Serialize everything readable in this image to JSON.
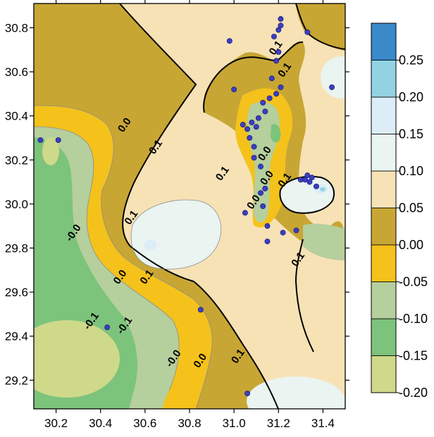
{
  "chart_data": {
    "type": "contour",
    "title": "",
    "xlabel": "",
    "ylabel": "",
    "xlim": [
      30.1,
      31.5
    ],
    "ylim": [
      29.07,
      30.91
    ],
    "x_ticks": [
      30.2,
      30.4,
      30.6,
      30.8,
      31.0,
      31.2,
      31.4
    ],
    "x_tick_labels": [
      "30.2",
      "30.4",
      "30.6",
      "30.8",
      "31.0",
      "31.2",
      "31.4"
    ],
    "y_ticks": [
      29.2,
      29.4,
      29.6,
      29.8,
      30.0,
      30.2,
      30.4,
      30.6,
      30.8
    ],
    "y_tick_labels": [
      "29.2",
      "29.4",
      "29.6",
      "29.8",
      "30.0",
      "30.2",
      "30.4",
      "30.6",
      "30.8"
    ],
    "colorbar": {
      "levels": [
        -0.2,
        -0.15,
        -0.1,
        -0.05,
        0.0,
        0.05,
        0.1,
        0.15,
        0.2,
        0.25
      ],
      "labels": [
        "-0.20",
        "-0.15",
        "-0.10",
        "-0.05",
        "0.00",
        "0.05",
        "0.10",
        "0.15",
        "0.20",
        "0.25"
      ],
      "bands": [
        {
          "range": [
            -0.2,
            -0.15
          ],
          "color": "#cfd98a"
        },
        {
          "range": [
            -0.15,
            -0.1
          ],
          "color": "#7cc37c"
        },
        {
          "range": [
            -0.1,
            -0.05
          ],
          "color": "#b5cf9d"
        },
        {
          "range": [
            -0.05,
            0.0
          ],
          "color": "#f4c21a"
        },
        {
          "range": [
            0.0,
            0.05
          ],
          "color": "#c8a634"
        },
        {
          "range": [
            0.05,
            0.1
          ],
          "color": "#f7e2b6"
        },
        {
          "range": [
            0.1,
            0.15
          ],
          "color": "#eaf4f0"
        },
        {
          "range": [
            0.15,
            0.2
          ],
          "color": "#dcedf7"
        },
        {
          "range": [
            0.2,
            0.25
          ],
          "color": "#92d3e3"
        },
        {
          "range": [
            0.25,
            0.3
          ],
          "color": "#3a89c9"
        }
      ]
    },
    "contour_labels": [
      {
        "text": "0.0",
        "x": 30.52,
        "y": 30.35
      },
      {
        "text": "0.1",
        "x": 30.66,
        "y": 30.25
      },
      {
        "text": "0.1",
        "x": 30.55,
        "y": 29.93
      },
      {
        "text": "-0.0",
        "x": 30.29,
        "y": 29.86
      },
      {
        "text": "0.0",
        "x": 30.5,
        "y": 29.66
      },
      {
        "text": "0.1",
        "x": 30.62,
        "y": 29.66
      },
      {
        "text": "-0.1",
        "x": 30.37,
        "y": 29.46
      },
      {
        "text": "-0.1",
        "x": 30.52,
        "y": 29.44
      },
      {
        "text": "-0.0",
        "x": 30.74,
        "y": 29.29
      },
      {
        "text": "0.0",
        "x": 30.86,
        "y": 29.28
      },
      {
        "text": "0.1",
        "x": 31.03,
        "y": 29.3
      },
      {
        "text": "0.1",
        "x": 30.96,
        "y": 30.13
      },
      {
        "text": "0.0",
        "x": 31.15,
        "y": 30.22
      },
      {
        "text": "0.0",
        "x": 31.16,
        "y": 30.11
      },
      {
        "text": "0.0",
        "x": 31.1,
        "y": 30.0
      },
      {
        "text": "0.1",
        "x": 31.24,
        "y": 30.1
      },
      {
        "text": "0.1",
        "x": 31.3,
        "y": 29.74
      },
      {
        "text": "0.1",
        "x": 31.2,
        "y": 30.7
      },
      {
        "text": "0.1",
        "x": 31.24,
        "y": 30.6
      }
    ],
    "points": [
      {
        "x": 30.13,
        "y": 30.29
      },
      {
        "x": 30.21,
        "y": 30.29
      },
      {
        "x": 30.43,
        "y": 29.44
      },
      {
        "x": 30.85,
        "y": 29.52
      },
      {
        "x": 30.98,
        "y": 30.74
      },
      {
        "x": 31.0,
        "y": 30.52
      },
      {
        "x": 31.05,
        "y": 29.96
      },
      {
        "x": 31.06,
        "y": 29.14
      },
      {
        "x": 31.04,
        "y": 30.36
      },
      {
        "x": 31.06,
        "y": 30.34
      },
      {
        "x": 31.07,
        "y": 30.3
      },
      {
        "x": 31.08,
        "y": 30.37
      },
      {
        "x": 31.09,
        "y": 30.26
      },
      {
        "x": 31.09,
        "y": 30.21
      },
      {
        "x": 31.1,
        "y": 30.35
      },
      {
        "x": 31.11,
        "y": 30.39
      },
      {
        "x": 31.12,
        "y": 30.17
      },
      {
        "x": 31.12,
        "y": 30.05
      },
      {
        "x": 31.13,
        "y": 30.46
      },
      {
        "x": 31.13,
        "y": 29.99
      },
      {
        "x": 31.14,
        "y": 30.42
      },
      {
        "x": 31.14,
        "y": 30.07
      },
      {
        "x": 31.15,
        "y": 29.83
      },
      {
        "x": 31.15,
        "y": 29.9
      },
      {
        "x": 31.16,
        "y": 30.48
      },
      {
        "x": 31.17,
        "y": 30.57
      },
      {
        "x": 31.18,
        "y": 30.76
      },
      {
        "x": 31.19,
        "y": 30.65
      },
      {
        "x": 31.19,
        "y": 30.5
      },
      {
        "x": 31.2,
        "y": 30.69
      },
      {
        "x": 31.2,
        "y": 30.79
      },
      {
        "x": 31.21,
        "y": 30.84
      },
      {
        "x": 31.21,
        "y": 30.81
      },
      {
        "x": 31.21,
        "y": 30.53
      },
      {
        "x": 31.22,
        "y": 29.87
      },
      {
        "x": 31.28,
        "y": 29.88
      },
      {
        "x": 31.3,
        "y": 30.11
      },
      {
        "x": 31.32,
        "y": 30.11
      },
      {
        "x": 31.33,
        "y": 30.13
      },
      {
        "x": 31.34,
        "y": 30.1
      },
      {
        "x": 31.35,
        "y": 30.12
      },
      {
        "x": 31.37,
        "y": 30.08
      },
      {
        "x": 31.33,
        "y": 30.78
      },
      {
        "x": 31.44,
        "y": 30.53
      }
    ]
  }
}
